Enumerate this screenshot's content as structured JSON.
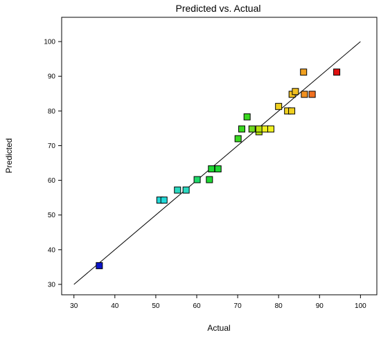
{
  "chart_data": {
    "type": "scatter",
    "title": "Predicted vs. Actual",
    "xlabel": "Actual",
    "ylabel": "Predicted",
    "xlim": [
      27,
      104
    ],
    "ylim": [
      27,
      107
    ],
    "xticks": [
      30,
      40,
      50,
      60,
      70,
      80,
      90,
      100
    ],
    "yticks": [
      30,
      40,
      50,
      60,
      70,
      80,
      90,
      100
    ],
    "grid": false,
    "reference_line": {
      "from": [
        30,
        30
      ],
      "to": [
        100,
        100
      ],
      "color": "#000000"
    },
    "points": [
      {
        "x": 36.2,
        "y": 35.4,
        "color": "#0b14c8"
      },
      {
        "x": 51.0,
        "y": 54.3,
        "color": "#22d8d8"
      },
      {
        "x": 52.0,
        "y": 54.3,
        "color": "#22d8d8"
      },
      {
        "x": 55.3,
        "y": 57.2,
        "color": "#2ad8c0"
      },
      {
        "x": 57.4,
        "y": 57.2,
        "color": "#2ad8c0"
      },
      {
        "x": 60.1,
        "y": 60.2,
        "color": "#1fd86b"
      },
      {
        "x": 63.1,
        "y": 60.2,
        "color": "#1fd833"
      },
      {
        "x": 63.6,
        "y": 63.3,
        "color": "#1fd833"
      },
      {
        "x": 65.2,
        "y": 63.3,
        "color": "#1fd833"
      },
      {
        "x": 70.1,
        "y": 72.0,
        "color": "#3ad820"
      },
      {
        "x": 71.0,
        "y": 74.8,
        "color": "#3ad820"
      },
      {
        "x": 72.3,
        "y": 78.3,
        "color": "#3ad820"
      },
      {
        "x": 73.5,
        "y": 74.8,
        "color": "#6fd820"
      },
      {
        "x": 75.2,
        "y": 74.0,
        "color": "#b8e010"
      },
      {
        "x": 75.2,
        "y": 74.8,
        "color": "#b8e010"
      },
      {
        "x": 76.7,
        "y": 74.8,
        "color": "#f0f020"
      },
      {
        "x": 78.1,
        "y": 74.8,
        "color": "#f0f020"
      },
      {
        "x": 80.0,
        "y": 81.3,
        "color": "#f0d020"
      },
      {
        "x": 82.2,
        "y": 80.0,
        "color": "#f0d020"
      },
      {
        "x": 83.2,
        "y": 80.0,
        "color": "#f0d020"
      },
      {
        "x": 83.3,
        "y": 84.8,
        "color": "#f0c020"
      },
      {
        "x": 84.1,
        "y": 85.6,
        "color": "#f0c020"
      },
      {
        "x": 86.1,
        "y": 91.2,
        "color": "#f0a020"
      },
      {
        "x": 86.3,
        "y": 84.8,
        "color": "#f09020"
      },
      {
        "x": 88.2,
        "y": 84.8,
        "color": "#f07020"
      },
      {
        "x": 94.2,
        "y": 91.2,
        "color": "#e01010"
      }
    ]
  }
}
